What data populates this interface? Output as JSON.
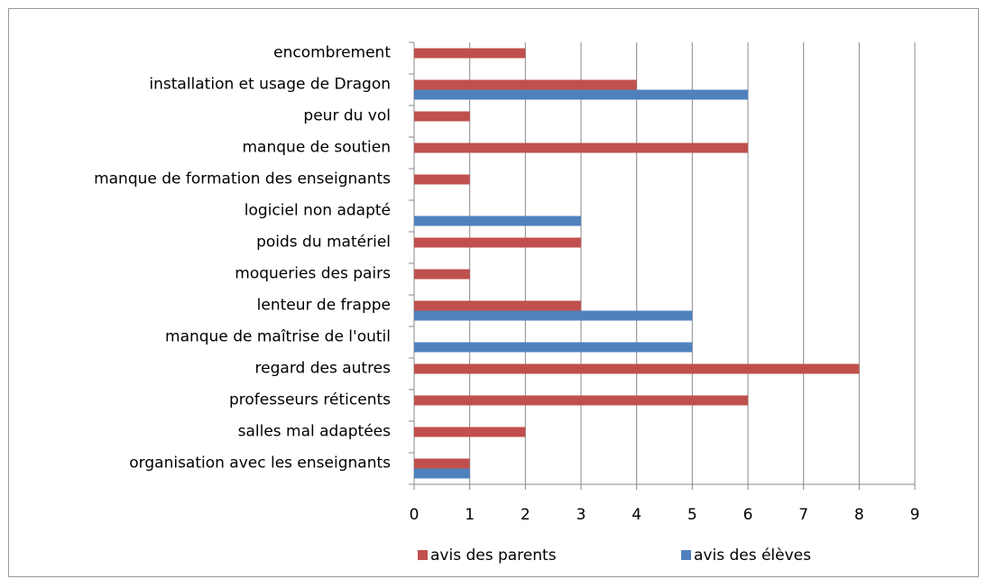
{
  "chart_data": {
    "type": "hbar",
    "categories": [
      "encombrement",
      "installation et usage de Dragon",
      "peur du vol",
      "manque de soutien",
      "manque de formation des enseignants",
      "logiciel non adapté",
      "poids du matériel",
      "moqueries des pairs",
      "lenteur de frappe",
      "manque de maîtrise de l'outil",
      "regard des autres",
      "professeurs réticents",
      "salles mal adaptées",
      "organisation avec les enseignants"
    ],
    "series": [
      {
        "name": "avis des parents",
        "color": "#c0504d",
        "values": [
          2,
          4,
          1,
          6,
          1,
          null,
          3,
          1,
          3,
          null,
          8,
          6,
          2,
          1
        ]
      },
      {
        "name": "avis des élèves",
        "color": "#4f81bd",
        "values": [
          null,
          6,
          null,
          null,
          null,
          3,
          null,
          null,
          5,
          5,
          null,
          null,
          null,
          1
        ]
      }
    ],
    "xlim": [
      0,
      9
    ],
    "xticks": [
      0,
      1,
      2,
      3,
      4,
      5,
      6,
      7,
      8,
      9
    ],
    "grid": true
  }
}
